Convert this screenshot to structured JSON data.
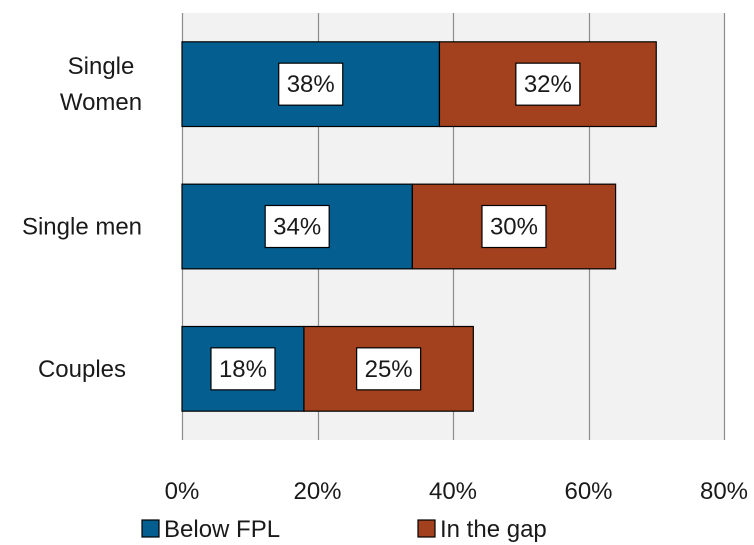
{
  "chart_data": {
    "type": "bar",
    "orientation": "horizontal",
    "stacked": true,
    "categories": [
      "Single\nWomen",
      "Single men",
      "Couples"
    ],
    "series": [
      {
        "name": "Below FPL",
        "color": "#045e8f",
        "values": [
          38,
          34,
          18
        ],
        "labels": [
          "38%",
          "34%",
          "18%"
        ]
      },
      {
        "name": "In the gap",
        "color": "#a3401d",
        "values": [
          32,
          30,
          25
        ],
        "labels": [
          "32%",
          "30%",
          "25%"
        ]
      }
    ],
    "xlim": [
      0,
      80
    ],
    "xticks": [
      0,
      20,
      40,
      60,
      80
    ],
    "xtick_labels": [
      "0%",
      "20%",
      "40%",
      "60%",
      "80%"
    ],
    "grid": true,
    "legend_position": "bottom",
    "plot_background": "#f2f2f2"
  }
}
